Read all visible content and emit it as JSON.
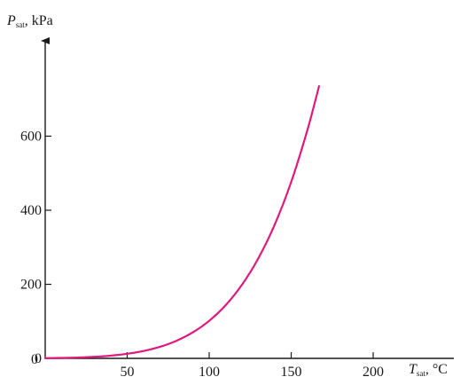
{
  "chart_data": {
    "type": "line",
    "title": "",
    "xlabel": {
      "symbol": "T",
      "subscript": "sat",
      "unit": ", °C"
    },
    "ylabel": {
      "symbol": "P",
      "subscript": "sat",
      "unit": ", kPa"
    },
    "xlim": [
      0,
      250
    ],
    "ylim": [
      0,
      800
    ],
    "x_ticks": [
      0,
      50,
      100,
      150,
      200
    ],
    "x_tick_labels": [
      "0",
      "50",
      "100",
      "150",
      "200"
    ],
    "y_ticks": [
      0,
      200,
      400,
      600
    ],
    "y_tick_labels": [
      "0",
      "200",
      "400",
      "600"
    ],
    "grid": false,
    "legend": "none",
    "series": [
      {
        "color": "#e0197d",
        "x": [
          0,
          10,
          20,
          30,
          40,
          50,
          60,
          70,
          80,
          90,
          100,
          110,
          120,
          130,
          140,
          150,
          160,
          167
        ],
        "y": [
          0.6,
          1.2,
          2.3,
          4.2,
          7.4,
          12.4,
          19.9,
          31.2,
          47.4,
          70.2,
          101.4,
          143.3,
          198.7,
          270.3,
          361.5,
          476.2,
          618.2,
          735
        ]
      }
    ]
  }
}
